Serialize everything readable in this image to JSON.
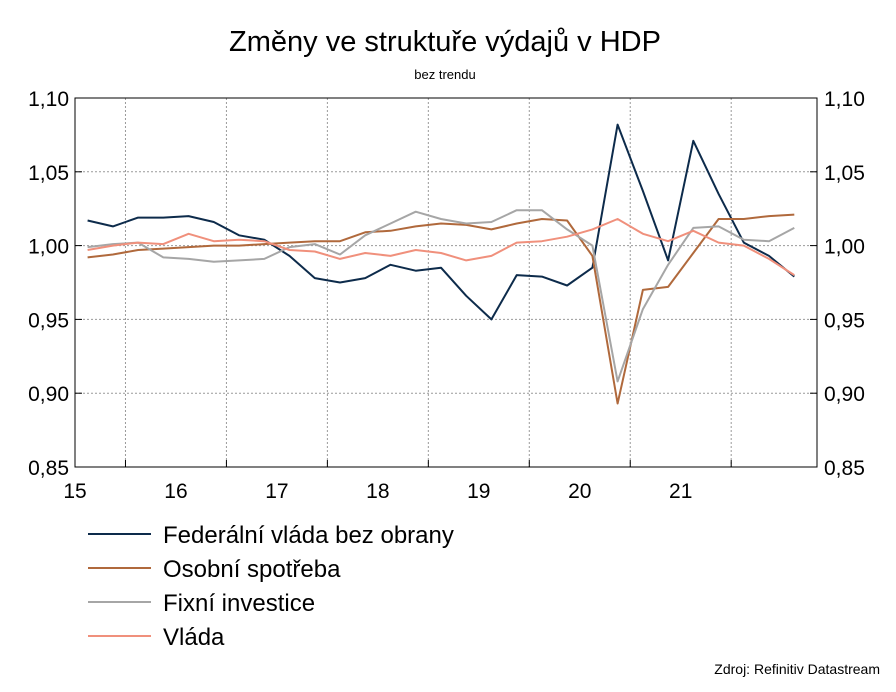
{
  "chart_data": {
    "type": "line",
    "title": "Změny ve struktuře výdajů v HDP",
    "subtitle": "bez trendu",
    "xlabel": "",
    "ylabel": "",
    "x_ticks": [
      "15",
      "16",
      "17",
      "18",
      "19",
      "20",
      "21"
    ],
    "x_range": [
      2014.5,
      2021.85
    ],
    "y_ticks": [
      "1,10",
      "1,05",
      "1,00",
      "0,95",
      "0,90",
      "0,85"
    ],
    "ylim": [
      0.85,
      1.1
    ],
    "grid": true,
    "legend_position": "bottom-left",
    "x": [
      2014.625,
      2014.875,
      2015.125,
      2015.375,
      2015.625,
      2015.875,
      2016.125,
      2016.375,
      2016.625,
      2016.875,
      2017.125,
      2017.375,
      2017.625,
      2017.875,
      2018.125,
      2018.375,
      2018.625,
      2018.875,
      2019.125,
      2019.375,
      2019.625,
      2019.875,
      2020.125,
      2020.375,
      2020.625,
      2020.875,
      2021.125,
      2021.375,
      2021.625
    ],
    "series": [
      {
        "name": "Federální vláda bez obrany",
        "color": "#0d2b4b",
        "values": [
          1.017,
          1.013,
          1.019,
          1.019,
          1.02,
          1.016,
          1.007,
          1.004,
          0.993,
          0.978,
          0.975,
          0.978,
          0.987,
          0.983,
          0.985,
          0.966,
          0.95,
          0.98,
          0.979,
          0.973,
          0.985,
          1.082,
          1.037,
          0.99,
          1.071,
          1.035,
          1.002,
          0.993,
          0.979
        ]
      },
      {
        "name": "Osobní spotřeba",
        "color": "#b0693c",
        "values": [
          0.992,
          0.994,
          0.997,
          0.998,
          0.999,
          1.0,
          1.0,
          1.001,
          1.002,
          1.003,
          1.003,
          1.009,
          1.01,
          1.013,
          1.015,
          1.014,
          1.011,
          1.015,
          1.018,
          1.017,
          0.993,
          0.893,
          0.97,
          0.972,
          0.995,
          1.018,
          1.018,
          1.02,
          1.021
        ]
      },
      {
        "name": "Fixní investice",
        "color": "#a6a6a6",
        "values": [
          0.999,
          1.001,
          1.002,
          0.992,
          0.991,
          0.989,
          0.99,
          0.991,
          0.999,
          1.001,
          0.994,
          1.007,
          1.015,
          1.023,
          1.018,
          1.015,
          1.016,
          1.024,
          1.024,
          1.011,
          1.0,
          0.908,
          0.957,
          0.987,
          1.012,
          1.013,
          1.004,
          1.003,
          1.012
        ]
      },
      {
        "name": "Vláda",
        "color": "#f0907c",
        "values": [
          0.997,
          1.0,
          1.002,
          1.001,
          1.008,
          1.003,
          1.004,
          1.003,
          0.997,
          0.996,
          0.991,
          0.995,
          0.993,
          0.997,
          0.995,
          0.99,
          0.993,
          1.002,
          1.003,
          1.006,
          1.011,
          1.018,
          1.008,
          1.003,
          1.01,
          1.002,
          1.0,
          0.991,
          0.98
        ]
      }
    ],
    "source": "Zdroj: Refinitiv Datastream"
  }
}
